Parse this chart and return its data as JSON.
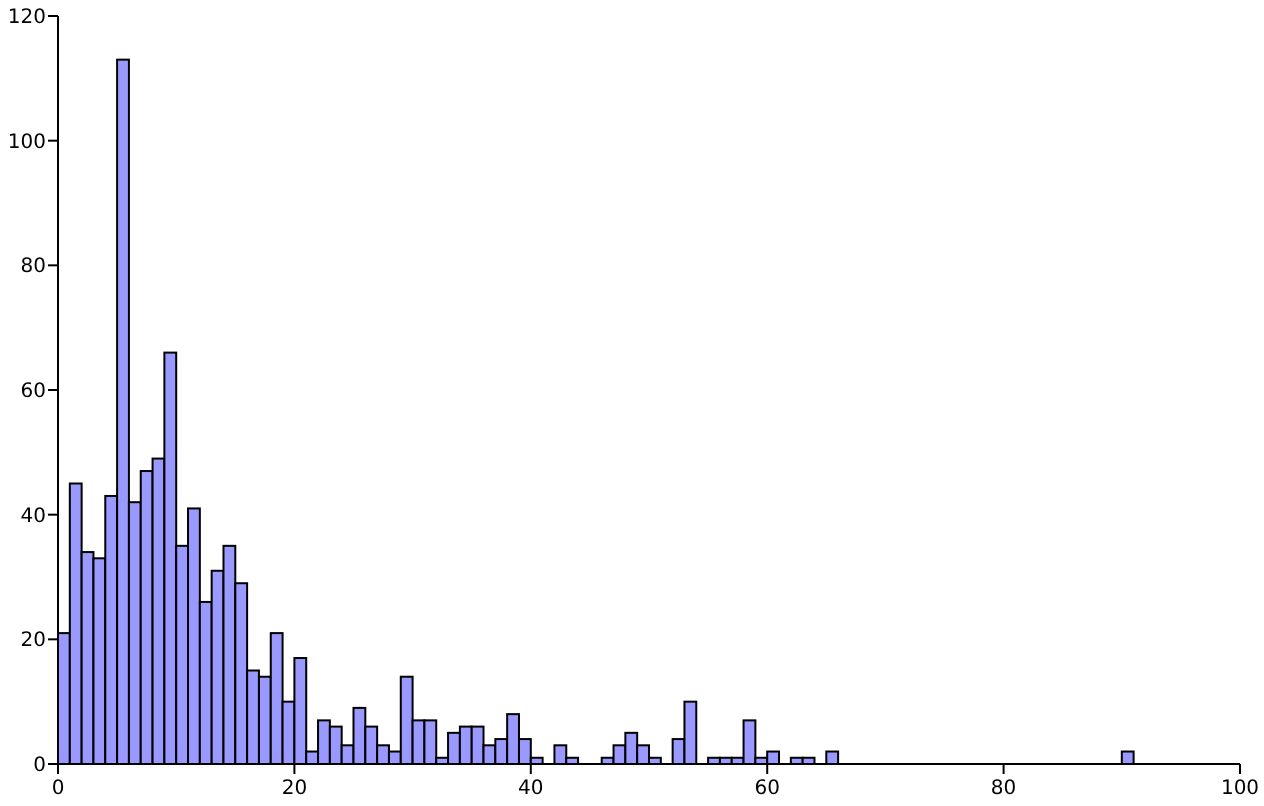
{
  "chart_data": {
    "type": "histogram",
    "color": "#9999ff",
    "bins": [
      0,
      1,
      2,
      3,
      4,
      5,
      6,
      7,
      8,
      9,
      10,
      11,
      12,
      13,
      14,
      15,
      16,
      17,
      18,
      19,
      20,
      21,
      22,
      23,
      24,
      25,
      26,
      27,
      28,
      29,
      30,
      31,
      32,
      33,
      34,
      35,
      36,
      37,
      38,
      39,
      40,
      41,
      42,
      43,
      44,
      45,
      46,
      47,
      48,
      49,
      50,
      51,
      52,
      53,
      54,
      55,
      56,
      57,
      58,
      59,
      60,
      61,
      62,
      63,
      64,
      65,
      66,
      67,
      68,
      69,
      70,
      71,
      72,
      73,
      74,
      75,
      76,
      77,
      78,
      79,
      80,
      81,
      82,
      83,
      84,
      85,
      86,
      87,
      88,
      89,
      90,
      91,
      92,
      93,
      94,
      95,
      96,
      97,
      98,
      99,
      100
    ],
    "values": [
      21,
      45,
      34,
      33,
      43,
      113,
      42,
      47,
      49,
      66,
      35,
      41,
      26,
      31,
      35,
      29,
      15,
      14,
      21,
      10,
      17,
      2,
      7,
      6,
      3,
      9,
      6,
      3,
      2,
      14,
      7,
      7,
      1,
      5,
      6,
      6,
      3,
      4,
      8,
      4,
      1,
      0,
      3,
      1,
      0,
      0,
      1,
      3,
      5,
      3,
      1,
      0,
      4,
      10,
      0,
      1,
      1,
      1,
      7,
      1,
      2,
      0,
      1,
      1,
      0,
      2,
      0,
      0,
      0,
      0,
      0,
      0,
      0,
      0,
      0,
      0,
      0,
      0,
      0,
      0,
      0,
      0,
      0,
      0,
      0,
      0,
      0,
      0,
      0,
      0,
      2,
      0,
      0,
      0,
      0,
      0,
      0,
      0,
      0,
      0
    ],
    "xlim": [
      0,
      100
    ],
    "xticks": [
      0,
      20,
      40,
      60,
      80,
      100
    ],
    "ylim": [
      0,
      120
    ],
    "yticks": [
      0,
      20,
      40,
      60,
      80,
      100,
      120
    ],
    "grid": false
  }
}
